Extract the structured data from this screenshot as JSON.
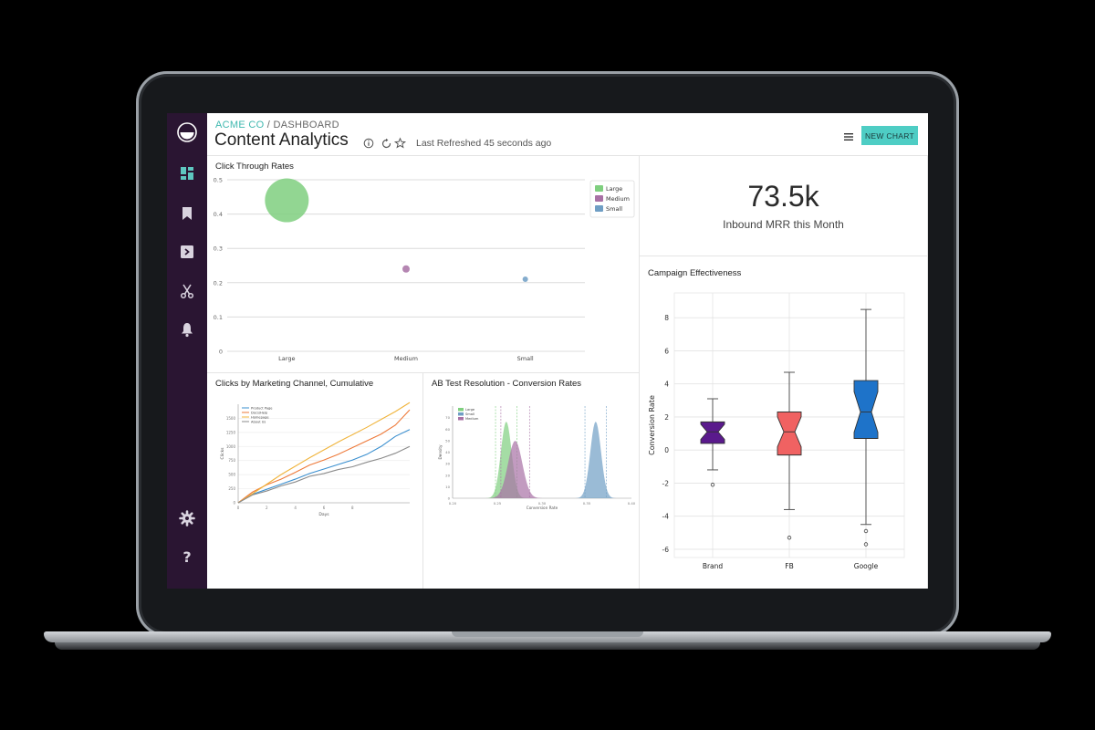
{
  "header": {
    "org": "ACME CO",
    "crumb_sep": " / ",
    "section": "DASHBOARD",
    "title": "Content Analytics",
    "refresh": "Last Refreshed 45 seconds ago",
    "new_chart": "NEW CHART"
  },
  "sidebar": {
    "items": [
      "dashboard-icon",
      "bookmark-icon",
      "query-icon",
      "scissors-icon",
      "bell-icon"
    ],
    "bottom": [
      "gear-icon",
      "help-icon"
    ]
  },
  "metric": {
    "value": "73.5k",
    "label": "Inbound MRR this Month"
  },
  "colors": {
    "large": "#7fcf7f",
    "medium": "#a871a5",
    "small": "#6f9ec4",
    "accent": "#4ecdc4",
    "sidebar": "#2a1532"
  },
  "chart_data": [
    {
      "type": "scatter",
      "title": "Click Through Rates",
      "categories": [
        "Large",
        "Medium",
        "Small"
      ],
      "values": [
        0.44,
        0.24,
        0.21
      ],
      "ylim": [
        0,
        0.5
      ],
      "yticks": [
        "0",
        "0.1",
        "0.2",
        "0.3",
        "0.4",
        "0.5"
      ],
      "legend": [
        "Large",
        "Medium",
        "Small"
      ],
      "legend_position": "top-right"
    },
    {
      "type": "line",
      "title": "Clicks by Marketing Channel, Cumulative",
      "xlabel": "Days",
      "ylabel": "Clicks",
      "legend": [
        "Product Page",
        "Docs/Help",
        "Homepage",
        "About Us"
      ],
      "series": [
        {
          "name": "Product Page",
          "values": [
            0,
            150,
            240,
            330,
            420,
            520,
            600,
            680,
            760,
            860,
            1000,
            1180,
            1300
          ]
        },
        {
          "name": "Docs/Help",
          "values": [
            0,
            190,
            320,
            420,
            540,
            670,
            760,
            860,
            980,
            1100,
            1220,
            1380,
            1650
          ]
        },
        {
          "name": "Homepage",
          "values": [
            0,
            160,
            330,
            500,
            650,
            800,
            940,
            1080,
            1210,
            1340,
            1480,
            1620,
            1780
          ]
        },
        {
          "name": "About Us",
          "values": [
            0,
            140,
            210,
            300,
            370,
            470,
            520,
            590,
            640,
            720,
            790,
            880,
            1000
          ]
        }
      ],
      "ylim": [
        0,
        1750
      ],
      "yticks": [
        "0",
        "250",
        "500",
        "750",
        "1000",
        "1250",
        "1500"
      ],
      "xlim": [
        0,
        12
      ],
      "xticks": [
        "0",
        "2",
        "4",
        "6",
        "8"
      ],
      "grid": true,
      "legend_position": "top-left"
    },
    {
      "type": "area",
      "title": "AB Test Resolution - Conversion Rates",
      "xlabel": "Conversion Rate",
      "ylabel": "Density",
      "legend": [
        "Large",
        "Small",
        "Medium"
      ],
      "series": [
        {
          "name": "Large",
          "mean": 0.26,
          "sd": 0.006
        },
        {
          "name": "Small",
          "mean": 0.36,
          "sd": 0.006
        },
        {
          "name": "Medium",
          "mean": 0.27,
          "sd": 0.008
        }
      ],
      "xlim": [
        0.2,
        0.4
      ],
      "ylim": [
        0,
        80
      ],
      "xticks": [
        "0.20",
        "0.25",
        "0.30",
        "0.35",
        "0.40"
      ],
      "yticks": [
        "0",
        "10",
        "20",
        "30",
        "40",
        "50",
        "60",
        "70"
      ],
      "xtick_values": [
        0.2,
        0.25,
        0.3,
        0.35,
        0.4
      ],
      "ytick_values": [
        0,
        10,
        20,
        30,
        40,
        50,
        60,
        70
      ],
      "legend_position": "top-left"
    },
    {
      "type": "box",
      "title": "Campaign Effectiveness",
      "ylabel": "Conversion Rate",
      "categories": [
        "Brand",
        "FB",
        "Google"
      ],
      "boxes": [
        {
          "name": "Brand",
          "min": -1.2,
          "q1": 0.4,
          "median": 1.1,
          "q3": 1.7,
          "max": 3.1,
          "outliers": [
            -2.1
          ],
          "color": "#5a1a8c"
        },
        {
          "name": "FB",
          "min": -3.6,
          "q1": -0.3,
          "median": 1.1,
          "q3": 2.3,
          "max": 4.7,
          "outliers": [
            -5.3
          ],
          "color": "#f06262"
        },
        {
          "name": "Google",
          "min": -4.5,
          "q1": 0.7,
          "median": 2.3,
          "q3": 4.2,
          "max": 8.5,
          "outliers": [
            -4.9,
            -5.7
          ],
          "color": "#1e73c9"
        }
      ],
      "ylim": [
        -6.5,
        9.5
      ],
      "yticks": [
        "-6",
        "-4",
        "-2",
        "0",
        "2",
        "4",
        "6",
        "8"
      ],
      "ytick_values": [
        -6,
        -4,
        -2,
        0,
        2,
        4,
        6,
        8
      ],
      "grid": true
    }
  ]
}
